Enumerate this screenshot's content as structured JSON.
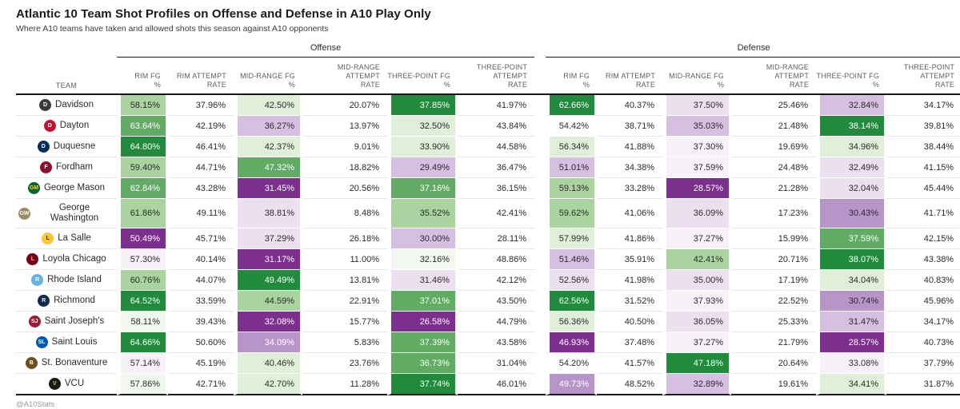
{
  "chart_data": {
    "type": "heatmap-table",
    "title": "Atlantic 10 Team Shot Profiles on Offense and Defense in A10 Play Only",
    "subtitle": "Where A10 teams have taken and allowed shots this season against A10 opponents",
    "credit": "@A10Stats",
    "column_groups": {
      "offense": "Offense",
      "defense": "Defense"
    },
    "team_column_header": "TEAM",
    "stat_column_headers": [
      "RIM FG\n%",
      "RIM ATTEMPT\nRATE",
      "MID-RANGE FG\n%",
      "MID-RANGE ATTEMPT\nRATE",
      "THREE-POINT FG\n%",
      "THREE-POINT ATTEMPT\nRATE"
    ],
    "stat_keys": [
      "rim-fg-pct",
      "rim-attempt-rate",
      "mid-range-fg-pct",
      "mid-range-attempt-rate",
      "three-point-fg-pct",
      "three-point-attempt-rate"
    ],
    "palette": {
      "g4": {
        "bg": "#218a3d",
        "text": "#ffffff"
      },
      "g3": {
        "bg": "#61ab64",
        "text": "#ffffff"
      },
      "g2": {
        "bg": "#abd3a0",
        "text": "#2b2b2b"
      },
      "g1": {
        "bg": "#e0efda",
        "text": "#2b2b2b"
      },
      "g0": {
        "bg": "#f2f8ef",
        "text": "#2b2b2b"
      },
      "w": {
        "bg": "#ffffff",
        "text": "#2b2b2b"
      },
      "p0": {
        "bg": "#f7f2f8",
        "text": "#2b2b2b"
      },
      "p1": {
        "bg": "#ecdff0",
        "text": "#2b2b2b"
      },
      "p2": {
        "bg": "#d6bfe1",
        "text": "#2b2b2b"
      },
      "p3": {
        "bg": "#b795c8",
        "text": "#2b2b2b"
      },
      "p3w": {
        "bg": "#b795c8",
        "text": "#ffffff"
      },
      "p4": {
        "bg": "#7d2f8d",
        "text": "#ffffff"
      }
    },
    "teams": [
      {
        "name": "Davidson",
        "logo": {
          "bg": "#3a3a3a",
          "fg": "#ffffff",
          "initials": "D"
        },
        "offense": [
          {
            "v": "58.15%",
            "c": "g2"
          },
          {
            "v": "37.96%",
            "c": "w"
          },
          {
            "v": "42.50%",
            "c": "g1"
          },
          {
            "v": "20.07%",
            "c": "w"
          },
          {
            "v": "37.85%",
            "c": "g4"
          },
          {
            "v": "41.97%",
            "c": "w"
          }
        ],
        "defense": [
          {
            "v": "62.66%",
            "c": "g4"
          },
          {
            "v": "40.37%",
            "c": "w"
          },
          {
            "v": "37.50%",
            "c": "p1"
          },
          {
            "v": "25.46%",
            "c": "w"
          },
          {
            "v": "32.84%",
            "c": "p2"
          },
          {
            "v": "34.17%",
            "c": "w"
          }
        ]
      },
      {
        "name": "Dayton",
        "logo": {
          "bg": "#c8102e",
          "fg": "#ffffff",
          "initials": "D"
        },
        "offense": [
          {
            "v": "63.64%",
            "c": "g3"
          },
          {
            "v": "42.19%",
            "c": "w"
          },
          {
            "v": "36.27%",
            "c": "p2"
          },
          {
            "v": "13.97%",
            "c": "w"
          },
          {
            "v": "32.50%",
            "c": "g1"
          },
          {
            "v": "43.84%",
            "c": "w"
          }
        ],
        "defense": [
          {
            "v": "54.42%",
            "c": "w"
          },
          {
            "v": "38.71%",
            "c": "w"
          },
          {
            "v": "35.03%",
            "c": "p2"
          },
          {
            "v": "21.48%",
            "c": "w"
          },
          {
            "v": "38.14%",
            "c": "g4"
          },
          {
            "v": "39.81%",
            "c": "w"
          }
        ]
      },
      {
        "name": "Duquesne",
        "logo": {
          "bg": "#002d62",
          "fg": "#ffffff",
          "initials": "D"
        },
        "offense": [
          {
            "v": "64.80%",
            "c": "g4"
          },
          {
            "v": "46.41%",
            "c": "w"
          },
          {
            "v": "42.37%",
            "c": "g1"
          },
          {
            "v": "9.01%",
            "c": "w"
          },
          {
            "v": "33.90%",
            "c": "g1"
          },
          {
            "v": "44.58%",
            "c": "w"
          }
        ],
        "defense": [
          {
            "v": "56.34%",
            "c": "g1"
          },
          {
            "v": "41.88%",
            "c": "w"
          },
          {
            "v": "37.30%",
            "c": "p0"
          },
          {
            "v": "19.69%",
            "c": "w"
          },
          {
            "v": "34.96%",
            "c": "g1"
          },
          {
            "v": "38.44%",
            "c": "w"
          }
        ]
      },
      {
        "name": "Fordham",
        "logo": {
          "bg": "#8c0d2c",
          "fg": "#ffffff",
          "initials": "F"
        },
        "offense": [
          {
            "v": "59.40%",
            "c": "g2"
          },
          {
            "v": "44.71%",
            "c": "w"
          },
          {
            "v": "47.32%",
            "c": "g3"
          },
          {
            "v": "18.82%",
            "c": "w"
          },
          {
            "v": "29.49%",
            "c": "p2"
          },
          {
            "v": "36.47%",
            "c": "w"
          }
        ],
        "defense": [
          {
            "v": "51.01%",
            "c": "p2"
          },
          {
            "v": "34.38%",
            "c": "w"
          },
          {
            "v": "37.59%",
            "c": "p0"
          },
          {
            "v": "24.48%",
            "c": "w"
          },
          {
            "v": "32.49%",
            "c": "p1"
          },
          {
            "v": "41.15%",
            "c": "w"
          }
        ]
      },
      {
        "name": "George Mason",
        "logo": {
          "bg": "#006633",
          "fg": "#ffcc33",
          "initials": "GM"
        },
        "offense": [
          {
            "v": "62.84%",
            "c": "g3"
          },
          {
            "v": "43.28%",
            "c": "w"
          },
          {
            "v": "31.45%",
            "c": "p4"
          },
          {
            "v": "20.56%",
            "c": "w"
          },
          {
            "v": "37.16%",
            "c": "g3"
          },
          {
            "v": "36.15%",
            "c": "w"
          }
        ],
        "defense": [
          {
            "v": "59.13%",
            "c": "g2"
          },
          {
            "v": "33.28%",
            "c": "w"
          },
          {
            "v": "28.57%",
            "c": "p4"
          },
          {
            "v": "21.28%",
            "c": "w"
          },
          {
            "v": "32.04%",
            "c": "p1"
          },
          {
            "v": "45.44%",
            "c": "w"
          }
        ]
      },
      {
        "name": "George Washington",
        "logo": {
          "bg": "#9b8a5c",
          "fg": "#ffffff",
          "initials": "GW"
        },
        "offense": [
          {
            "v": "61.86%",
            "c": "g2"
          },
          {
            "v": "49.11%",
            "c": "w"
          },
          {
            "v": "38.81%",
            "c": "p1"
          },
          {
            "v": "8.48%",
            "c": "w"
          },
          {
            "v": "35.52%",
            "c": "g2"
          },
          {
            "v": "42.41%",
            "c": "w"
          }
        ],
        "defense": [
          {
            "v": "59.62%",
            "c": "g2"
          },
          {
            "v": "41.06%",
            "c": "w"
          },
          {
            "v": "36.09%",
            "c": "p1"
          },
          {
            "v": "17.23%",
            "c": "w"
          },
          {
            "v": "30.43%",
            "c": "p3"
          },
          {
            "v": "41.71%",
            "c": "w"
          }
        ]
      },
      {
        "name": "La Salle",
        "logo": {
          "bg": "#ffc72c",
          "fg": "#00337f",
          "initials": "L"
        },
        "offense": [
          {
            "v": "50.49%",
            "c": "p4"
          },
          {
            "v": "45.71%",
            "c": "w"
          },
          {
            "v": "37.29%",
            "c": "p1"
          },
          {
            "v": "26.18%",
            "c": "w"
          },
          {
            "v": "30.00%",
            "c": "p2"
          },
          {
            "v": "28.11%",
            "c": "w"
          }
        ],
        "defense": [
          {
            "v": "57.99%",
            "c": "g1"
          },
          {
            "v": "41.86%",
            "c": "w"
          },
          {
            "v": "37.27%",
            "c": "p0"
          },
          {
            "v": "15.99%",
            "c": "w"
          },
          {
            "v": "37.59%",
            "c": "g3"
          },
          {
            "v": "42.15%",
            "c": "w"
          }
        ]
      },
      {
        "name": "Loyola Chicago",
        "logo": {
          "bg": "#7a0019",
          "fg": "#f2c75c",
          "initials": "L"
        },
        "offense": [
          {
            "v": "57.30%",
            "c": "p0"
          },
          {
            "v": "40.14%",
            "c": "w"
          },
          {
            "v": "31.17%",
            "c": "p4"
          },
          {
            "v": "11.00%",
            "c": "w"
          },
          {
            "v": "32.16%",
            "c": "g0"
          },
          {
            "v": "48.86%",
            "c": "w"
          }
        ],
        "defense": [
          {
            "v": "51.46%",
            "c": "p2"
          },
          {
            "v": "35.91%",
            "c": "w"
          },
          {
            "v": "42.41%",
            "c": "g2"
          },
          {
            "v": "20.71%",
            "c": "w"
          },
          {
            "v": "38.07%",
            "c": "g4"
          },
          {
            "v": "43.38%",
            "c": "w"
          }
        ]
      },
      {
        "name": "Rhode Island",
        "logo": {
          "bg": "#68b2e3",
          "fg": "#ffffff",
          "initials": "R"
        },
        "offense": [
          {
            "v": "60.76%",
            "c": "g2"
          },
          {
            "v": "44.07%",
            "c": "w"
          },
          {
            "v": "49.49%",
            "c": "g4"
          },
          {
            "v": "13.81%",
            "c": "w"
          },
          {
            "v": "31.46%",
            "c": "p1"
          },
          {
            "v": "42.12%",
            "c": "w"
          }
        ],
        "defense": [
          {
            "v": "52.56%",
            "c": "p1"
          },
          {
            "v": "41.98%",
            "c": "w"
          },
          {
            "v": "35.00%",
            "c": "p1"
          },
          {
            "v": "17.19%",
            "c": "w"
          },
          {
            "v": "34.04%",
            "c": "g1"
          },
          {
            "v": "40.83%",
            "c": "w"
          }
        ]
      },
      {
        "name": "Richmond",
        "logo": {
          "bg": "#14294b",
          "fg": "#e8eaed",
          "initials": "R"
        },
        "offense": [
          {
            "v": "64.52%",
            "c": "g4"
          },
          {
            "v": "33.59%",
            "c": "w"
          },
          {
            "v": "44.59%",
            "c": "g2"
          },
          {
            "v": "22.91%",
            "c": "w"
          },
          {
            "v": "37.01%",
            "c": "g3"
          },
          {
            "v": "43.50%",
            "c": "w"
          }
        ],
        "defense": [
          {
            "v": "62.56%",
            "c": "g4"
          },
          {
            "v": "31.52%",
            "c": "w"
          },
          {
            "v": "37.93%",
            "c": "p0"
          },
          {
            "v": "22.52%",
            "c": "w"
          },
          {
            "v": "30.74%",
            "c": "p3"
          },
          {
            "v": "45.96%",
            "c": "w"
          }
        ]
      },
      {
        "name": "Saint Joseph's",
        "logo": {
          "bg": "#9e1b32",
          "fg": "#ffffff",
          "initials": "SJ"
        },
        "offense": [
          {
            "v": "58.11%",
            "c": "g0"
          },
          {
            "v": "39.43%",
            "c": "w"
          },
          {
            "v": "32.08%",
            "c": "p4"
          },
          {
            "v": "15.77%",
            "c": "w"
          },
          {
            "v": "26.58%",
            "c": "p4"
          },
          {
            "v": "44.79%",
            "c": "w"
          }
        ],
        "defense": [
          {
            "v": "56.36%",
            "c": "g1"
          },
          {
            "v": "40.50%",
            "c": "w"
          },
          {
            "v": "36.05%",
            "c": "p1"
          },
          {
            "v": "25.33%",
            "c": "w"
          },
          {
            "v": "31.47%",
            "c": "p2"
          },
          {
            "v": "34.17%",
            "c": "w"
          }
        ]
      },
      {
        "name": "Saint Louis",
        "logo": {
          "bg": "#0057b8",
          "fg": "#ffffff",
          "initials": "SL"
        },
        "offense": [
          {
            "v": "64.66%",
            "c": "g4"
          },
          {
            "v": "50.60%",
            "c": "w"
          },
          {
            "v": "34.09%",
            "c": "p3w"
          },
          {
            "v": "5.83%",
            "c": "w"
          },
          {
            "v": "37.39%",
            "c": "g3"
          },
          {
            "v": "43.58%",
            "c": "w"
          }
        ],
        "defense": [
          {
            "v": "46.93%",
            "c": "p4"
          },
          {
            "v": "37.48%",
            "c": "w"
          },
          {
            "v": "37.27%",
            "c": "p0"
          },
          {
            "v": "21.79%",
            "c": "w"
          },
          {
            "v": "28.57%",
            "c": "p4"
          },
          {
            "v": "40.73%",
            "c": "w"
          }
        ]
      },
      {
        "name": "St. Bonaventure",
        "logo": {
          "bg": "#6e4f1e",
          "fg": "#ffffff",
          "initials": "B"
        },
        "offense": [
          {
            "v": "57.14%",
            "c": "p0"
          },
          {
            "v": "45.19%",
            "c": "w"
          },
          {
            "v": "40.46%",
            "c": "g1"
          },
          {
            "v": "23.76%",
            "c": "w"
          },
          {
            "v": "36.73%",
            "c": "g3"
          },
          {
            "v": "31.04%",
            "c": "w"
          }
        ],
        "defense": [
          {
            "v": "54.20%",
            "c": "w"
          },
          {
            "v": "41.57%",
            "c": "w"
          },
          {
            "v": "47.18%",
            "c": "g4"
          },
          {
            "v": "20.64%",
            "c": "w"
          },
          {
            "v": "33.08%",
            "c": "p0"
          },
          {
            "v": "37.79%",
            "c": "w"
          }
        ]
      },
      {
        "name": "VCU",
        "logo": {
          "bg": "#1b1b1b",
          "fg": "#f8b800",
          "initials": "V"
        },
        "offense": [
          {
            "v": "57.86%",
            "c": "g0"
          },
          {
            "v": "42.71%",
            "c": "w"
          },
          {
            "v": "42.70%",
            "c": "g1"
          },
          {
            "v": "11.28%",
            "c": "w"
          },
          {
            "v": "37.74%",
            "c": "g4"
          },
          {
            "v": "46.01%",
            "c": "w"
          }
        ],
        "defense": [
          {
            "v": "49.73%",
            "c": "p3w"
          },
          {
            "v": "48.52%",
            "c": "w"
          },
          {
            "v": "32.89%",
            "c": "p2"
          },
          {
            "v": "19.61%",
            "c": "w"
          },
          {
            "v": "34.41%",
            "c": "g1"
          },
          {
            "v": "31.87%",
            "c": "w"
          }
        ]
      }
    ]
  }
}
